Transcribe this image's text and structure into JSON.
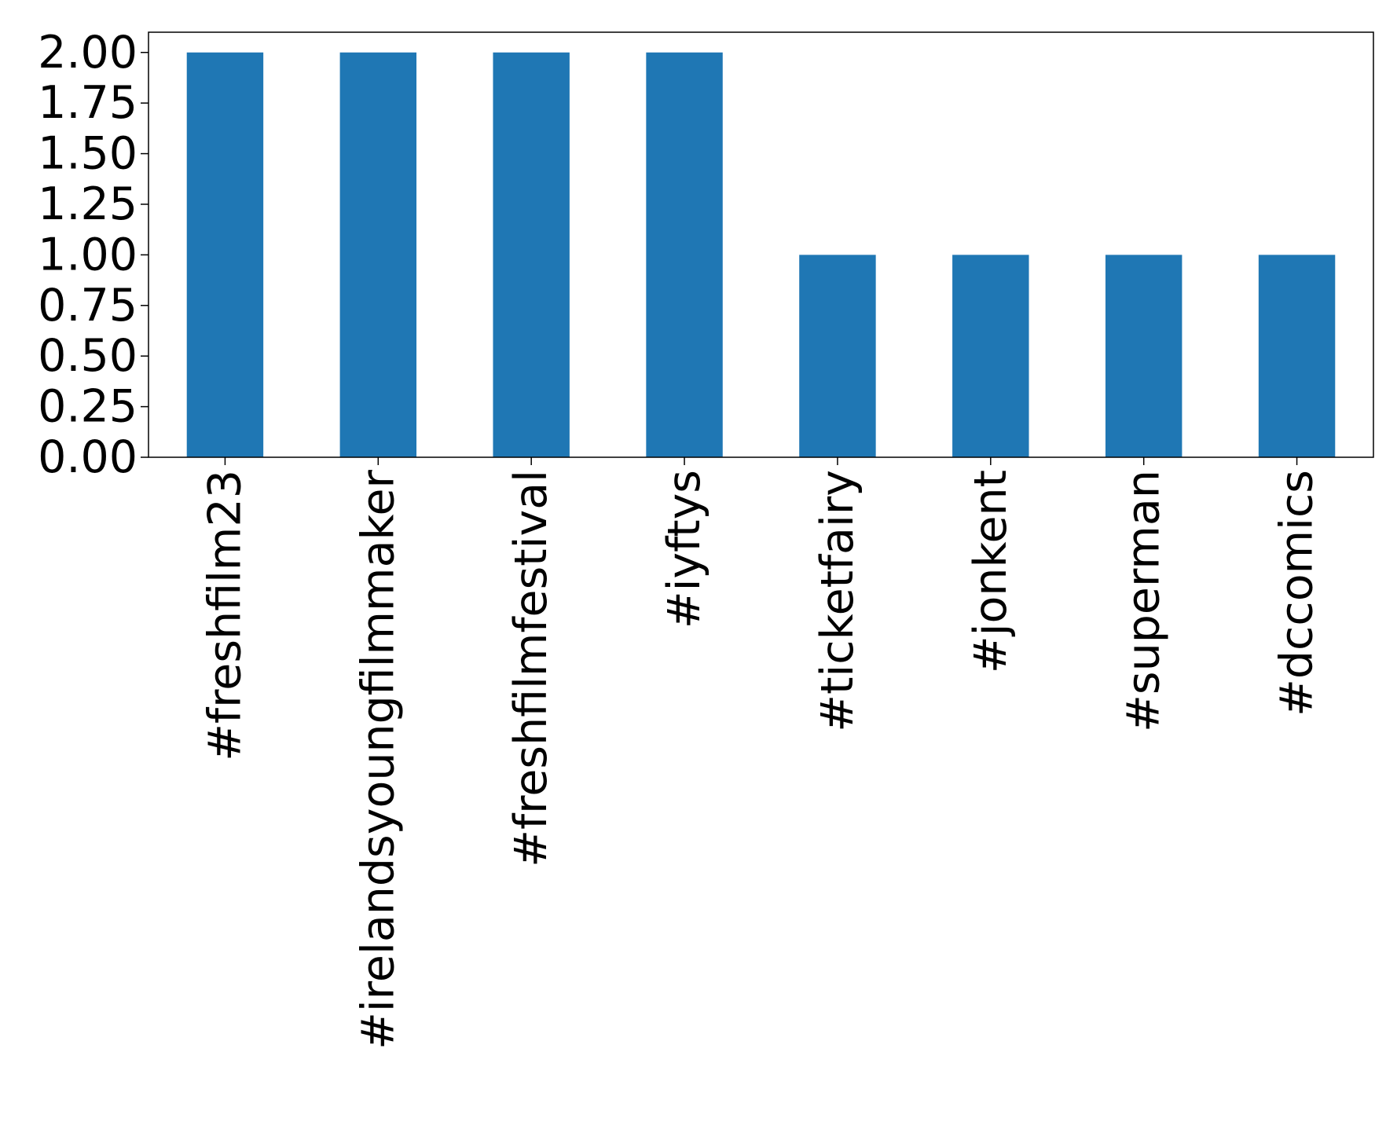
{
  "chart_data": {
    "type": "bar",
    "categories": [
      "#freshfilm23",
      "#irelandsyoungfilmmaker",
      "#freshfilmfestival",
      "#iyftys",
      "#ticketfairy",
      "#jonkent",
      "#superman",
      "#dccomics"
    ],
    "values": [
      2,
      2,
      2,
      2,
      1,
      1,
      1,
      1
    ],
    "color": "#1f77b4",
    "ylim": [
      0,
      2.1
    ],
    "yticks": [
      {
        "value": 0,
        "label": "0.00"
      },
      {
        "value": 0.25,
        "label": "0.25"
      },
      {
        "value": 0.5,
        "label": "0.50"
      },
      {
        "value": 0.75,
        "label": "0.75"
      },
      {
        "value": 1,
        "label": "1.00"
      },
      {
        "value": 1.25,
        "label": "1.25"
      },
      {
        "value": 1.5,
        "label": "1.50"
      },
      {
        "value": 1.75,
        "label": "1.75"
      },
      {
        "value": 2,
        "label": "2.00"
      }
    ],
    "grid": false
  }
}
